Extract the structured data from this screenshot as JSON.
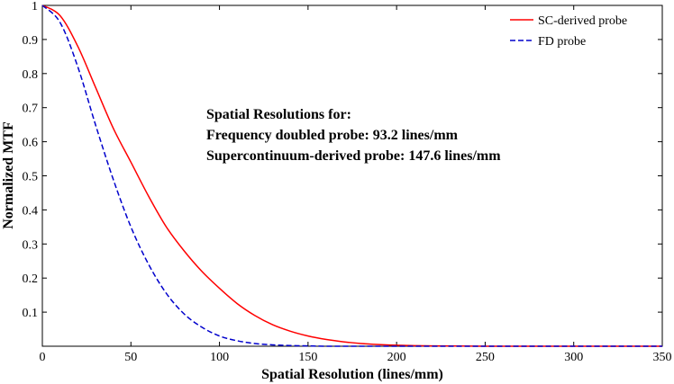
{
  "chart_data": {
    "type": "line",
    "title": "",
    "xlabel": "Spatial Resolution (lines/mm)",
    "ylabel": "Normalized MTF",
    "xlim": [
      0,
      350
    ],
    "ylim": [
      0,
      1
    ],
    "xticks": [
      "0",
      "50",
      "100",
      "150",
      "200",
      "250",
      "300",
      "350"
    ],
    "yticks": [
      "0.1",
      "0.2",
      "0.3",
      "0.4",
      "0.5",
      "0.6",
      "0.7",
      "0.8",
      "0.9",
      "1"
    ],
    "grid": false,
    "legend_position": "top-right",
    "series": [
      {
        "name": "SC-derived probe",
        "color": "#ff0000",
        "style": "solid",
        "x": [
          0,
          10,
          20,
          30,
          40,
          50,
          60,
          70,
          80,
          90,
          100,
          110,
          120,
          130,
          140,
          150,
          160,
          170,
          180,
          190,
          200,
          220,
          250,
          300,
          350
        ],
        "y": [
          1.0,
          0.97,
          0.88,
          0.76,
          0.64,
          0.54,
          0.44,
          0.35,
          0.28,
          0.22,
          0.17,
          0.125,
          0.09,
          0.063,
          0.044,
          0.03,
          0.02,
          0.013,
          0.008,
          0.005,
          0.003,
          0.001,
          0.0,
          0.0,
          0.0
        ]
      },
      {
        "name": "FD probe",
        "color": "#0000cc",
        "style": "dashed",
        "x": [
          0,
          10,
          20,
          30,
          40,
          50,
          60,
          70,
          80,
          90,
          100,
          110,
          120,
          130,
          140,
          150,
          160,
          180,
          200,
          250,
          300,
          350
        ],
        "y": [
          1.0,
          0.95,
          0.82,
          0.65,
          0.49,
          0.35,
          0.24,
          0.155,
          0.095,
          0.056,
          0.03,
          0.016,
          0.008,
          0.004,
          0.002,
          0.001,
          0.0,
          0.0,
          0.0,
          0.0,
          0.0,
          0.0
        ]
      }
    ],
    "annotations": [
      {
        "text": "Spatial Resolutions for:",
        "color": "#000000"
      },
      {
        "text": "Frequency doubled probe: 93.2 lines/mm",
        "color": "#0000cc"
      },
      {
        "text": "Supercontinuum-derived probe: 147.6 lines/mm",
        "color": "#ff0000"
      }
    ]
  }
}
